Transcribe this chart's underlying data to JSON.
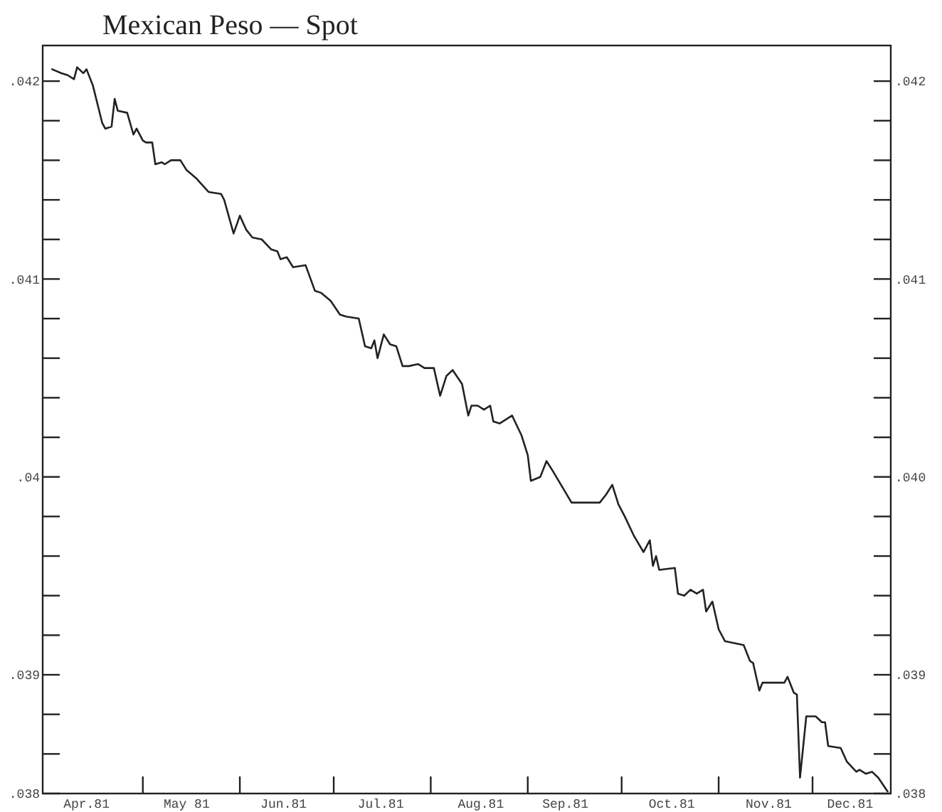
{
  "chart_data": {
    "type": "line",
    "title": "Mexican Peso — Spot",
    "x": [
      "1981-04-02",
      "1981-04-05",
      "1981-04-07",
      "1981-04-09",
      "1981-04-10",
      "1981-04-12",
      "1981-04-13",
      "1981-04-15",
      "1981-04-18",
      "1981-04-19",
      "1981-04-21",
      "1981-04-22",
      "1981-04-23",
      "1981-04-26",
      "1981-04-28",
      "1981-04-29",
      "1981-05-01",
      "1981-05-02",
      "1981-05-04",
      "1981-05-05",
      "1981-05-07",
      "1981-05-08",
      "1981-05-10",
      "1981-05-13",
      "1981-05-15",
      "1981-05-18",
      "1981-05-22",
      "1981-05-26",
      "1981-05-27",
      "1981-05-30",
      "1981-06-01",
      "1981-06-03",
      "1981-06-05",
      "1981-06-08",
      "1981-06-11",
      "1981-06-13",
      "1981-06-14",
      "1981-06-16",
      "1981-06-18",
      "1981-06-22",
      "1981-06-25",
      "1981-06-27",
      "1981-06-30",
      "1981-07-03",
      "1981-07-05",
      "1981-07-09",
      "1981-07-11",
      "1981-07-13",
      "1981-07-14",
      "1981-07-15",
      "1981-07-17",
      "1981-07-19",
      "1981-07-21",
      "1981-07-23",
      "1981-07-25",
      "1981-07-28",
      "1981-07-30",
      "1981-08-02",
      "1981-08-04",
      "1981-08-06",
      "1981-08-08",
      "1981-08-11",
      "1981-08-13",
      "1981-08-14",
      "1981-08-16",
      "1981-08-18",
      "1981-08-20",
      "1981-08-21",
      "1981-08-23",
      "1981-08-27",
      "1981-08-30",
      "1981-09-01",
      "1981-09-02",
      "1981-09-05",
      "1981-09-07",
      "1981-09-09",
      "1981-09-12",
      "1981-09-15",
      "1981-09-24",
      "1981-09-26",
      "1981-09-28",
      "1981-09-30",
      "1981-10-02",
      "1981-10-05",
      "1981-10-08",
      "1981-10-10",
      "1981-10-11",
      "1981-10-12",
      "1981-10-13",
      "1981-10-18",
      "1981-10-19",
      "1981-10-21",
      "1981-10-23",
      "1981-10-25",
      "1981-10-27",
      "1981-10-28",
      "1981-10-30",
      "1981-11-01",
      "1981-11-03",
      "1981-11-09",
      "1981-11-11",
      "1981-11-12",
      "1981-11-14",
      "1981-11-15",
      "1981-11-22",
      "1981-11-23",
      "1981-11-25",
      "1981-11-26",
      "1981-11-27",
      "1981-11-29",
      "1981-12-02",
      "1981-12-04",
      "1981-12-05",
      "1981-12-06",
      "1981-12-10",
      "1981-12-12",
      "1981-12-15",
      "1981-12-16",
      "1981-12-18",
      "1981-12-20",
      "1981-12-22",
      "1981-12-25"
    ],
    "series": [
      {
        "color": "#222222",
        "values": [
          0.04206,
          0.04204,
          0.04203,
          0.04201,
          0.04207,
          0.04204,
          0.04206,
          0.04198,
          0.04179,
          0.04176,
          0.04177,
          0.04191,
          0.04185,
          0.04184,
          0.04173,
          0.04176,
          0.0417,
          0.04169,
          0.04169,
          0.04158,
          0.04159,
          0.04158,
          0.0416,
          0.0416,
          0.04155,
          0.04151,
          0.04144,
          0.04143,
          0.0414,
          0.04123,
          0.04132,
          0.04125,
          0.04121,
          0.0412,
          0.04115,
          0.04114,
          0.0411,
          0.04111,
          0.04106,
          0.04107,
          0.04094,
          0.04093,
          0.04089,
          0.04082,
          0.04081,
          0.0408,
          0.04066,
          0.04065,
          0.04069,
          0.0406,
          0.04072,
          0.04067,
          0.04066,
          0.04056,
          0.04056,
          0.04057,
          0.04055,
          0.04055,
          0.04041,
          0.04051,
          0.04054,
          0.04047,
          0.04031,
          0.04036,
          0.04036,
          0.04034,
          0.04036,
          0.04028,
          0.04027,
          0.04031,
          0.04021,
          0.04011,
          0.03998,
          0.04,
          0.04008,
          0.04003,
          0.03995,
          0.03987,
          0.03987,
          0.03991,
          0.03996,
          0.03986,
          0.0398,
          0.0397,
          0.03962,
          0.03968,
          0.03955,
          0.0396,
          0.03953,
          0.03954,
          0.03941,
          0.0394,
          0.03943,
          0.03941,
          0.03943,
          0.03932,
          0.03937,
          0.03923,
          0.03917,
          0.03915,
          0.03907,
          0.03906,
          0.03892,
          0.03896,
          0.03896,
          0.03899,
          0.03891,
          0.0389,
          0.03848,
          0.03879,
          0.03879,
          0.03876,
          0.03876,
          0.03864,
          0.03863,
          0.03856,
          0.03851,
          0.03852,
          0.0385,
          0.03851,
          0.03848,
          0.03841
        ]
      }
    ],
    "xlim": [
      "1981-03-30",
      "1981-12-26"
    ],
    "xticks": [
      {
        "value": "1981-05-01",
        "label": null
      },
      {
        "value": "1981-06-01",
        "label": null
      },
      {
        "value": "1981-07-01",
        "label": null
      },
      {
        "value": "1981-08-01",
        "label": null
      },
      {
        "value": "1981-09-01",
        "label": null
      },
      {
        "value": "1981-10-01",
        "label": null
      },
      {
        "value": "1981-11-01",
        "label": null
      },
      {
        "value": "1981-12-01",
        "label": null
      },
      {
        "value": "1981-04-13",
        "label": "Apr.81"
      },
      {
        "value": "1981-05-15",
        "label": "May 81"
      },
      {
        "value": "1981-06-15",
        "label": "Jun.81"
      },
      {
        "value": "1981-07-16",
        "label": "Jul.81"
      },
      {
        "value": "1981-08-17",
        "label": "Aug.81"
      },
      {
        "value": "1981-09-13",
        "label": "Sep.81"
      },
      {
        "value": "1981-10-17",
        "label": "Oct.81"
      },
      {
        "value": "1981-11-17",
        "label": "Nov.81"
      },
      {
        "value": "1981-12-13",
        "label": "Dec.81"
      }
    ],
    "ylim": [
      0.0384,
      0.04218
    ],
    "yticks": [
      {
        "value": 0.0384,
        "label": ".038"
      },
      {
        "value": 0.0386,
        "label": null
      },
      {
        "value": 0.0388,
        "label": null
      },
      {
        "value": 0.039,
        "label": ".039"
      },
      {
        "value": 0.0392,
        "label": null
      },
      {
        "value": 0.0394,
        "label": null
      },
      {
        "value": 0.0396,
        "label": null
      },
      {
        "value": 0.0398,
        "label": null
      },
      {
        "value": 0.04,
        "label": ".04"
      },
      {
        "value": 0.0402,
        "label": null
      },
      {
        "value": 0.0404,
        "label": null
      },
      {
        "value": 0.0406,
        "label": null
      },
      {
        "value": 0.0408,
        "label": null
      },
      {
        "value": 0.041,
        "label": ".041"
      },
      {
        "value": 0.0412,
        "label": null
      },
      {
        "value": 0.0414,
        "label": null
      },
      {
        "value": 0.0416,
        "label": null
      },
      {
        "value": 0.0418,
        "label": null
      },
      {
        "value": 0.042,
        "label": ".042"
      }
    ],
    "y2lim": [
      0.0384,
      0.04218
    ],
    "y2ticks": [
      {
        "value": 0.0384,
        "label": ".038"
      },
      {
        "value": 0.0386,
        "label": null
      },
      {
        "value": 0.0388,
        "label": null
      },
      {
        "value": 0.039,
        "label": ".039"
      },
      {
        "value": 0.0392,
        "label": null
      },
      {
        "value": 0.0394,
        "label": null
      },
      {
        "value": 0.0396,
        "label": null
      },
      {
        "value": 0.0398,
        "label": null
      },
      {
        "value": 0.04,
        "label": ".040"
      },
      {
        "value": 0.0402,
        "label": null
      },
      {
        "value": 0.0404,
        "label": null
      },
      {
        "value": 0.0406,
        "label": null
      },
      {
        "value": 0.0408,
        "label": null
      },
      {
        "value": 0.041,
        "label": ".041"
      },
      {
        "value": 0.0412,
        "label": null
      },
      {
        "value": 0.0414,
        "label": null
      },
      {
        "value": 0.0416,
        "label": null
      },
      {
        "value": 0.0418,
        "label": null
      },
      {
        "value": 0.042,
        "label": ".042"
      }
    ]
  }
}
